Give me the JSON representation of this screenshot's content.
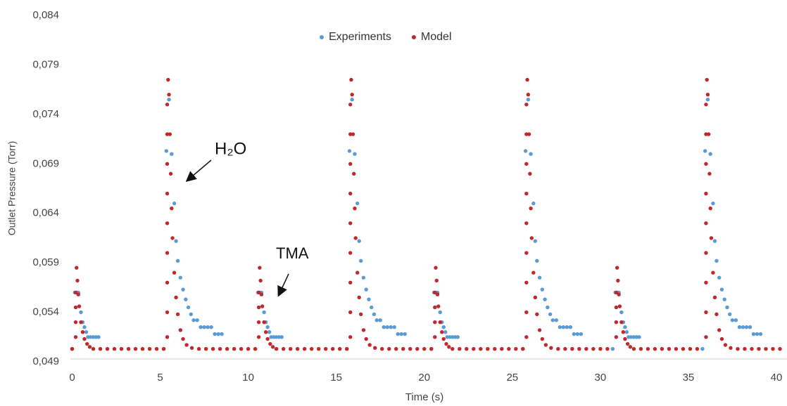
{
  "chart_data": {
    "type": "scatter",
    "x_label": "Time (s)",
    "y_label": "Outlet Pressure (Torr)",
    "xlim": [
      -0.1,
      40.6
    ],
    "xticks": [
      0,
      5,
      10,
      15,
      20,
      25,
      30,
      35,
      40
    ],
    "ylim": [
      0.049,
      0.084
    ],
    "yticks": [
      {
        "value": 0.049,
        "label": "0,049"
      },
      {
        "value": 0.054,
        "label": "0,054"
      },
      {
        "value": 0.059,
        "label": "0,059"
      },
      {
        "value": 0.064,
        "label": "0,064"
      },
      {
        "value": 0.069,
        "label": "0,069"
      },
      {
        "value": 0.074,
        "label": "0,074"
      },
      {
        "value": 0.079,
        "label": "0,079"
      },
      {
        "value": 0.084,
        "label": "0,084"
      }
    ],
    "legend": "top",
    "annotations": [
      {
        "text": "H₂O"
      },
      {
        "text": "TMA"
      }
    ],
    "series": [
      {
        "name": "Experiments",
        "color": "#5b9bd5",
        "x": [
          0,
          0.15,
          0.25,
          0.35,
          0.5,
          0.6,
          0.7,
          0.8,
          0.9,
          1.05,
          1.2,
          1.35,
          1.5,
          5.2,
          5.35,
          5.5,
          5.65,
          5.8,
          5.9,
          6,
          6.15,
          6.3,
          6.45,
          6.6,
          6.75,
          6.9,
          7.1,
          7.3,
          7.5,
          7.7,
          7.9,
          8.1,
          8.3,
          8.5,
          10.4,
          10.55,
          10.65,
          10.75,
          10.9,
          11,
          11.1,
          11.2,
          11.3,
          11.45,
          11.6,
          11.75,
          11.9,
          15.6,
          15.75,
          15.9,
          16.05,
          16.2,
          16.3,
          16.4,
          16.55,
          16.7,
          16.85,
          17,
          17.15,
          17.3,
          17.5,
          17.7,
          17.9,
          18.1,
          18.3,
          18.5,
          18.7,
          18.9,
          20.4,
          20.55,
          20.65,
          20.75,
          20.9,
          21,
          21.1,
          21.2,
          21.3,
          21.45,
          21.6,
          21.75,
          21.9,
          25.6,
          25.75,
          25.9,
          26.05,
          26.2,
          26.3,
          26.4,
          26.55,
          26.7,
          26.85,
          27,
          27.15,
          27.3,
          27.5,
          27.7,
          27.9,
          28.1,
          28.3,
          28.5,
          28.7,
          28.9,
          30.7,
          30.85,
          30.95,
          31.05,
          31.2,
          31.3,
          31.4,
          31.5,
          31.6,
          31.75,
          31.9,
          32.05,
          32.2,
          35.8,
          35.95,
          36.1,
          36.25,
          36.4,
          36.5,
          36.6,
          36.75,
          36.9,
          37.05,
          37.2,
          37.35,
          37.5,
          37.7,
          37.9,
          38.1,
          38.3,
          38.5,
          38.7,
          38.9,
          39.1
        ],
        "values": [
          0.0503,
          0.056,
          0.056,
          0.056,
          0.054,
          0.053,
          0.0525,
          0.052,
          0.0515,
          0.0515,
          0.0515,
          0.0515,
          0.0515,
          0.0503,
          0.0703,
          0.0755,
          0.07,
          0.065,
          0.0612,
          0.0592,
          0.0575,
          0.0563,
          0.0553,
          0.0545,
          0.0538,
          0.0532,
          0.0532,
          0.0525,
          0.0525,
          0.0525,
          0.0525,
          0.0518,
          0.0518,
          0.0518,
          0.0503,
          0.056,
          0.056,
          0.056,
          0.054,
          0.053,
          0.0525,
          0.052,
          0.0515,
          0.0515,
          0.0515,
          0.0515,
          0.0515,
          0.0503,
          0.0703,
          0.0755,
          0.07,
          0.065,
          0.0612,
          0.0592,
          0.0575,
          0.0563,
          0.0553,
          0.0545,
          0.0538,
          0.0532,
          0.0532,
          0.0525,
          0.0525,
          0.0525,
          0.0525,
          0.0518,
          0.0518,
          0.0518,
          0.0503,
          0.056,
          0.056,
          0.056,
          0.054,
          0.053,
          0.0525,
          0.052,
          0.0515,
          0.0515,
          0.0515,
          0.0515,
          0.0515,
          0.0503,
          0.0703,
          0.0755,
          0.07,
          0.065,
          0.0612,
          0.0592,
          0.0575,
          0.0563,
          0.0553,
          0.0545,
          0.0538,
          0.0532,
          0.0532,
          0.0525,
          0.0525,
          0.0525,
          0.0525,
          0.0518,
          0.0518,
          0.0518,
          0.0503,
          0.056,
          0.056,
          0.056,
          0.054,
          0.053,
          0.0525,
          0.052,
          0.0515,
          0.0515,
          0.0515,
          0.0515,
          0.0515,
          0.0503,
          0.0703,
          0.0755,
          0.07,
          0.065,
          0.0612,
          0.0592,
          0.0575,
          0.0563,
          0.0553,
          0.0545,
          0.0538,
          0.0532,
          0.0532,
          0.0525,
          0.0525,
          0.0525,
          0.0525,
          0.0518,
          0.0518,
          0.0518
        ]
      },
      {
        "name": "Model",
        "color": "#c0282d",
        "x": [
          0,
          0.2,
          0.2,
          0.2,
          0.2,
          0.25,
          0.3,
          0.35,
          0.4,
          0.5,
          0.6,
          0.7,
          0.85,
          1,
          1.2,
          1.6,
          2,
          2.4,
          2.8,
          3.2,
          3.6,
          4,
          4.4,
          4.8,
          5.2,
          5.4,
          5.4,
          5.4,
          5.4,
          5.4,
          5.4,
          5.4,
          5.4,
          5.4,
          5.45,
          5.5,
          5.55,
          5.6,
          5.65,
          5.7,
          5.8,
          5.9,
          6,
          6.15,
          6.3,
          6.5,
          6.8,
          7.2,
          7.6,
          8,
          8.4,
          8.8,
          9.2,
          9.6,
          10,
          10.4,
          10.6,
          10.6,
          10.6,
          10.6,
          10.65,
          10.7,
          10.75,
          10.8,
          10.9,
          11,
          11.1,
          11.25,
          11.4,
          11.6,
          12,
          12.4,
          12.8,
          13.2,
          13.6,
          14,
          14.4,
          14.8,
          15.2,
          15.6,
          15.8,
          15.8,
          15.8,
          15.8,
          15.8,
          15.8,
          15.8,
          15.8,
          15.8,
          15.85,
          15.9,
          15.95,
          16,
          16.05,
          16.1,
          16.2,
          16.3,
          16.4,
          16.55,
          16.7,
          16.9,
          17.2,
          17.6,
          18,
          18.4,
          18.8,
          19.2,
          19.6,
          20,
          20.4,
          20.6,
          20.6,
          20.6,
          20.6,
          20.65,
          20.7,
          20.75,
          20.8,
          20.9,
          21,
          21.1,
          21.25,
          21.4,
          21.6,
          22,
          22.4,
          22.8,
          23.2,
          23.6,
          24,
          24.4,
          24.8,
          25.2,
          25.6,
          25.8,
          25.8,
          25.8,
          25.8,
          25.8,
          25.8,
          25.8,
          25.8,
          25.8,
          25.85,
          25.9,
          25.95,
          26,
          26.05,
          26.1,
          26.2,
          26.3,
          26.4,
          26.55,
          26.7,
          26.9,
          27.2,
          27.6,
          28,
          28.4,
          28.8,
          29.2,
          29.6,
          30,
          30.4,
          30.9,
          30.9,
          30.9,
          30.9,
          30.95,
          31,
          31.05,
          31.1,
          31.2,
          31.3,
          31.4,
          31.55,
          31.7,
          31.9,
          32.3,
          32.7,
          33.1,
          33.5,
          33.9,
          34.3,
          34.7,
          35.1,
          35.5,
          36,
          36,
          36,
          36,
          36,
          36,
          36,
          36,
          36,
          36.05,
          36.1,
          36.15,
          36.2,
          36.25,
          36.3,
          36.4,
          36.5,
          36.6,
          36.75,
          36.9,
          37.1,
          37.4,
          37.8,
          38.2,
          38.6,
          39,
          39.4,
          39.8,
          40.2
        ],
        "values": [
          0.0503,
          0.0515,
          0.053,
          0.0545,
          0.056,
          0.0585,
          0.0572,
          0.0558,
          0.0546,
          0.053,
          0.052,
          0.0513,
          0.0508,
          0.0505,
          0.0503,
          0.0503,
          0.0503,
          0.0503,
          0.0503,
          0.0503,
          0.0503,
          0.0503,
          0.0503,
          0.0503,
          0.0503,
          0.0515,
          0.054,
          0.057,
          0.06,
          0.063,
          0.066,
          0.069,
          0.072,
          0.075,
          0.0775,
          0.076,
          0.072,
          0.068,
          0.0645,
          0.0615,
          0.058,
          0.0555,
          0.0538,
          0.0522,
          0.0513,
          0.0507,
          0.0504,
          0.0503,
          0.0503,
          0.0503,
          0.0503,
          0.0503,
          0.0503,
          0.0503,
          0.0503,
          0.0503,
          0.0515,
          0.053,
          0.0545,
          0.056,
          0.0585,
          0.0572,
          0.0558,
          0.0546,
          0.053,
          0.052,
          0.0513,
          0.0508,
          0.0505,
          0.0503,
          0.0503,
          0.0503,
          0.0503,
          0.0503,
          0.0503,
          0.0503,
          0.0503,
          0.0503,
          0.0503,
          0.0503,
          0.0515,
          0.054,
          0.057,
          0.06,
          0.063,
          0.066,
          0.069,
          0.072,
          0.075,
          0.0775,
          0.076,
          0.072,
          0.068,
          0.0645,
          0.0615,
          0.058,
          0.0555,
          0.0538,
          0.0522,
          0.0513,
          0.0507,
          0.0504,
          0.0503,
          0.0503,
          0.0503,
          0.0503,
          0.0503,
          0.0503,
          0.0503,
          0.0503,
          0.0515,
          0.053,
          0.0545,
          0.056,
          0.0585,
          0.0572,
          0.0558,
          0.0546,
          0.053,
          0.052,
          0.0513,
          0.0508,
          0.0505,
          0.0503,
          0.0503,
          0.0503,
          0.0503,
          0.0503,
          0.0503,
          0.0503,
          0.0503,
          0.0503,
          0.0503,
          0.0503,
          0.0515,
          0.054,
          0.057,
          0.06,
          0.063,
          0.066,
          0.069,
          0.072,
          0.075,
          0.0775,
          0.076,
          0.072,
          0.068,
          0.0645,
          0.0615,
          0.058,
          0.0555,
          0.0538,
          0.0522,
          0.0513,
          0.0507,
          0.0504,
          0.0503,
          0.0503,
          0.0503,
          0.0503,
          0.0503,
          0.0503,
          0.0503,
          0.0503,
          0.0515,
          0.053,
          0.0545,
          0.056,
          0.0585,
          0.0572,
          0.0558,
          0.0546,
          0.053,
          0.052,
          0.0513,
          0.0508,
          0.0505,
          0.0503,
          0.0503,
          0.0503,
          0.0503,
          0.0503,
          0.0503,
          0.0503,
          0.0503,
          0.0503,
          0.0503,
          0.0515,
          0.054,
          0.057,
          0.06,
          0.063,
          0.066,
          0.069,
          0.072,
          0.075,
          0.0775,
          0.076,
          0.072,
          0.068,
          0.0645,
          0.0615,
          0.058,
          0.0555,
          0.0538,
          0.0522,
          0.0513,
          0.0507,
          0.0504,
          0.0503,
          0.0503,
          0.0503,
          0.0503,
          0.0503,
          0.0503,
          0.0503
        ]
      }
    ]
  }
}
